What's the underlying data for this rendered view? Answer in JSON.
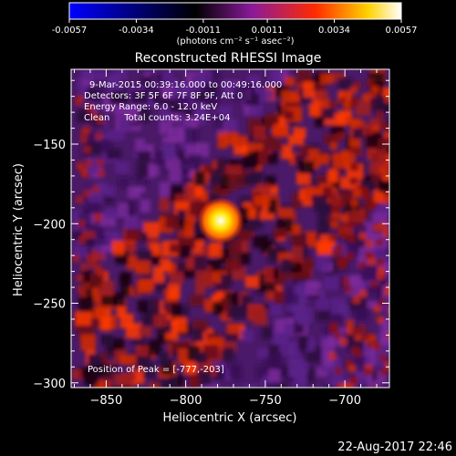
{
  "colorbar": {
    "ticks": [
      "-0.0057",
      "-0.0034",
      "-0.0011",
      "0.0011",
      "0.0034",
      "0.0057"
    ],
    "tick_values": [
      -0.0057,
      -0.0034,
      -0.0011,
      0.0011,
      0.0034,
      0.0057
    ],
    "units": "(photons cm⁻² s⁻¹ asec⁻²)",
    "colors": [
      "#0000ff",
      "#000000",
      "#8a1a9a",
      "#ff2a00",
      "#ffd200",
      "#ffffff"
    ]
  },
  "title": "Reconstructed RHESSI Image",
  "info": {
    "line1": "9-Mar-2015 00:39:16.000 to 00:49:16.000",
    "line2": "Detectors: 3F 5F 6F 7F 8F 9F, Att 0",
    "line3": "Energy Range: 6.0 - 12.0 keV",
    "line4": "Clean     Total counts: 3.24E+04"
  },
  "peak_text": "Position of Peak = [-777,-203]",
  "chart_data": {
    "type": "heatmap",
    "xlabel": "Heliocentric X (arcsec)",
    "ylabel": "Heliocentric Y (arcsec)",
    "xlim": [
      -872,
      -672
    ],
    "ylim": [
      -303,
      -103
    ],
    "x_ticks": [
      -850,
      -800,
      -750,
      -700
    ],
    "y_ticks": [
      -150,
      -200,
      -250,
      -300
    ],
    "peak": {
      "x": -777,
      "y": -203
    },
    "value_range": [
      -0.0057,
      0.0057
    ]
  },
  "timestamp": "22-Aug-2017 22:46"
}
